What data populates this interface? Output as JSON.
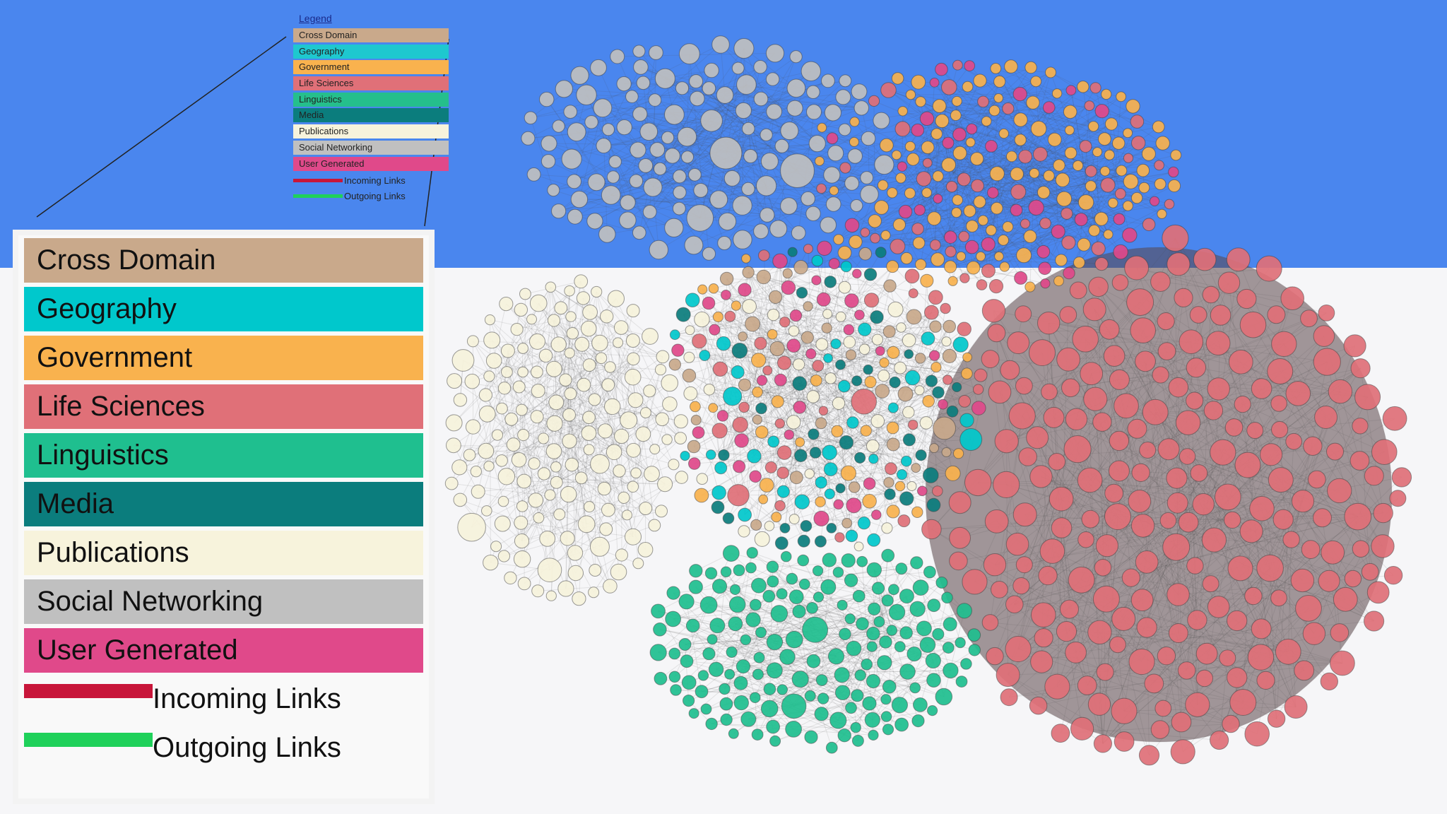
{
  "legend_small": {
    "title": "Legend",
    "items": [
      {
        "label": "Cross Domain",
        "color": "#c9a98b"
      },
      {
        "label": "Geography",
        "color": "#1ec8cf"
      },
      {
        "label": "Government",
        "color": "#f9b24e"
      },
      {
        "label": "Life Sciences",
        "color": "#e07078"
      },
      {
        "label": "Linguistics",
        "color": "#25bf8c"
      },
      {
        "label": "Media",
        "color": "#0b7d7d"
      },
      {
        "label": "Publications",
        "color": "#f7f3dc"
      },
      {
        "label": "Social Networking",
        "color": "#c0c0c0"
      },
      {
        "label": "User Generated",
        "color": "#e0498a"
      }
    ],
    "links": [
      {
        "label": "Incoming Links",
        "color": "#c8163a"
      },
      {
        "label": "Outgoing Links",
        "color": "#1fd15a"
      }
    ]
  },
  "legend": {
    "items": [
      {
        "label": "Cross Domain",
        "color": "#c9a98b"
      },
      {
        "label": "Geography",
        "color": "#00c8cc"
      },
      {
        "label": "Government",
        "color": "#f9b24e"
      },
      {
        "label": "Life Sciences",
        "color": "#e07078"
      },
      {
        "label": "Linguistics",
        "color": "#1fbf8f"
      },
      {
        "label": "Media",
        "color": "#0b7d7d"
      },
      {
        "label": "Publications",
        "color": "#f7f3dc"
      },
      {
        "label": "Social Networking",
        "color": "#c0c0c0"
      },
      {
        "label": "User Generated",
        "color": "#e0498a"
      }
    ],
    "links": [
      {
        "label": "Incoming Links",
        "color": "#c8163a"
      },
      {
        "label": "Outgoing Links",
        "color": "#1fd15a"
      }
    ]
  }
}
